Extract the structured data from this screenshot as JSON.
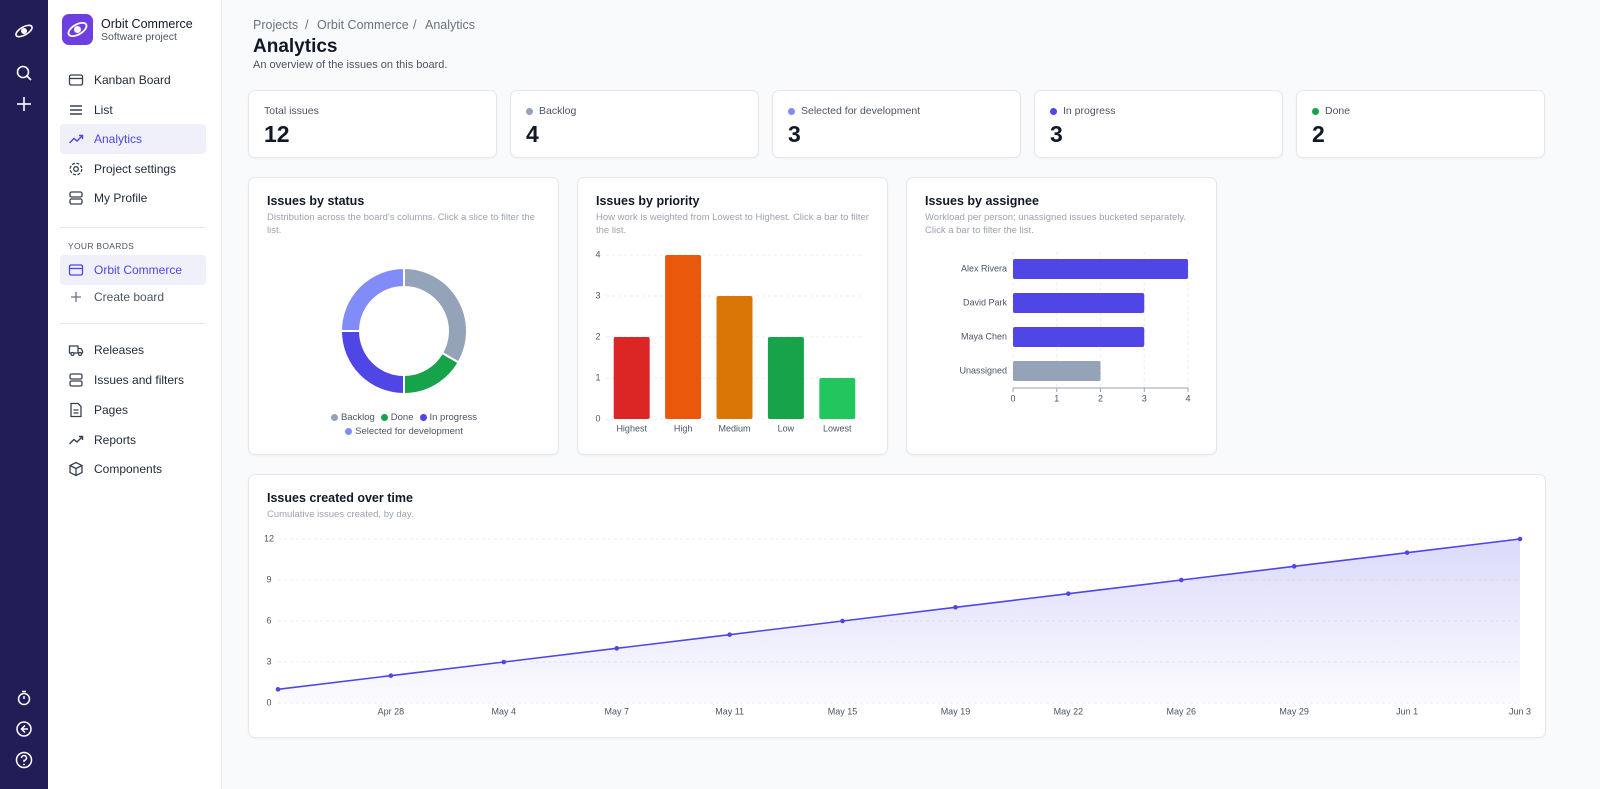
{
  "project": {
    "name": "Orbit Commerce",
    "type": "Software project"
  },
  "nav": [
    "Kanban Board",
    "List",
    "Analytics",
    "Project settings",
    "My Profile"
  ],
  "boards_heading": "YOUR BOARDS",
  "boards": [
    "Orbit Commerce"
  ],
  "create_board": "Create board",
  "nav2": [
    "Releases",
    "Issues and filters",
    "Pages",
    "Reports",
    "Components"
  ],
  "breadcrumb": [
    "Projects",
    "Orbit Commerce",
    "Analytics"
  ],
  "title": "Analytics",
  "subtitle": "An overview of the issues on this board.",
  "stats": [
    {
      "label": "Total issues",
      "value": 12
    },
    {
      "label": "Backlog",
      "value": 4,
      "color": "#94a3b8"
    },
    {
      "label": "Selected for development",
      "value": 3,
      "color": "#818cf8"
    },
    {
      "label": "In progress",
      "value": 3,
      "color": "#4f46e5"
    },
    {
      "label": "Done",
      "value": 2,
      "color": "#16a34a"
    }
  ],
  "chart_data": [
    {
      "type": "pie",
      "donut": true,
      "title": "Issues by status",
      "subtitle": "Distribution across the board's columns. Click a slice to filter the list.",
      "categories": [
        "Backlog",
        "Done",
        "In progress",
        "Selected for development"
      ],
      "values": [
        4,
        2,
        3,
        3
      ],
      "colors": [
        "#94a3b8",
        "#16a34a",
        "#4f46e5",
        "#818cf8"
      ],
      "legend": "bottom"
    },
    {
      "type": "bar",
      "title": "Issues by priority",
      "subtitle": "How work is weighted from Lowest to Highest. Click a bar to filter the list.",
      "categories": [
        "Highest",
        "High",
        "Medium",
        "Low",
        "Lowest"
      ],
      "values": [
        2,
        4,
        3,
        2,
        1
      ],
      "colors": [
        "#dc2626",
        "#ea580c",
        "#d97706",
        "#16a34a",
        "#22c55e"
      ],
      "ylim": [
        0,
        4
      ],
      "yticks": [
        0,
        1,
        2,
        3,
        4
      ],
      "grid": true
    },
    {
      "type": "hbar",
      "title": "Issues by assignee",
      "subtitle": "Workload per person; unassigned issues bucketed separately. Click a bar to filter the list.",
      "categories": [
        "Alex Rivera",
        "David Park",
        "Maya Chen",
        "Unassigned"
      ],
      "values": [
        4,
        3,
        3,
        2
      ],
      "colors": [
        "#4f46e5",
        "#4f46e5",
        "#4f46e5",
        "#94a3b8"
      ],
      "xlim": [
        0,
        4
      ],
      "xticks": [
        0,
        1,
        2,
        3,
        4
      ],
      "grid": true
    },
    {
      "type": "line",
      "title": "Issues created over time",
      "subtitle": "Cumulative issues created, by day.",
      "categories": [
        null,
        "Apr 28",
        "May 4",
        "May 7",
        "May 11",
        "May 15",
        "May 19",
        "May 22",
        "May 26",
        "May 29",
        "Jun 1",
        "Jun 3"
      ],
      "values": [
        1,
        2,
        3,
        4,
        5,
        6,
        7,
        8,
        9,
        10,
        11,
        12
      ],
      "color": "#4f46e5",
      "area": true,
      "ylim": [
        0,
        12
      ],
      "yticks": [
        0,
        3,
        6,
        9,
        12
      ],
      "grid": true
    }
  ]
}
